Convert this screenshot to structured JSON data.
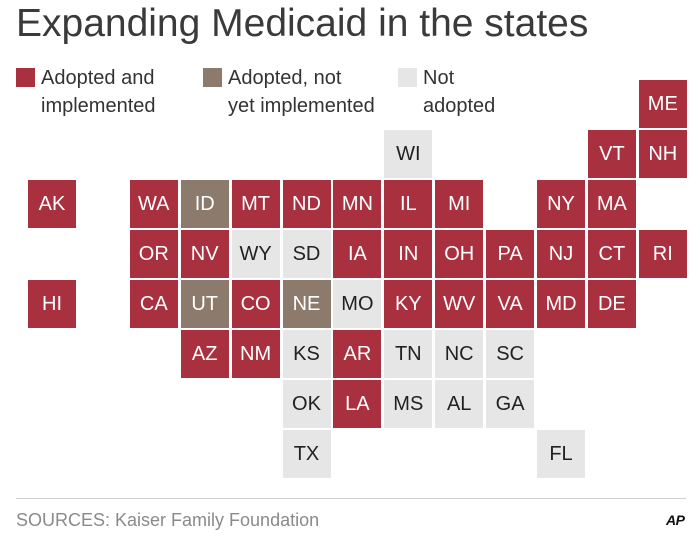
{
  "title": "Expanding Medicaid in the states",
  "colors": {
    "adopted": "#a8303f",
    "pending": "#8c7b6c",
    "not": "#e6e6e6"
  },
  "legend": [
    {
      "status": "adopted",
      "label_lines": [
        "Adopted and",
        "implemented"
      ]
    },
    {
      "status": "pending",
      "label_lines": [
        "Adopted, not",
        "yet implemented"
      ]
    },
    {
      "status": "not",
      "label_lines": [
        "Not",
        "adopted"
      ]
    }
  ],
  "states": [
    {
      "abbr": "ME",
      "col": 12,
      "row": 0,
      "status": "adopted"
    },
    {
      "abbr": "WI",
      "col": 7,
      "row": 1,
      "status": "not"
    },
    {
      "abbr": "VT",
      "col": 11,
      "row": 1,
      "status": "adopted"
    },
    {
      "abbr": "NH",
      "col": 12,
      "row": 1,
      "status": "adopted"
    },
    {
      "abbr": "AK",
      "col": 0,
      "row": 2,
      "status": "adopted"
    },
    {
      "abbr": "WA",
      "col": 2,
      "row": 2,
      "status": "adopted"
    },
    {
      "abbr": "ID",
      "col": 3,
      "row": 2,
      "status": "pending"
    },
    {
      "abbr": "MT",
      "col": 4,
      "row": 2,
      "status": "adopted"
    },
    {
      "abbr": "ND",
      "col": 5,
      "row": 2,
      "status": "adopted"
    },
    {
      "abbr": "MN",
      "col": 6,
      "row": 2,
      "status": "adopted"
    },
    {
      "abbr": "IL",
      "col": 7,
      "row": 2,
      "status": "adopted"
    },
    {
      "abbr": "MI",
      "col": 8,
      "row": 2,
      "status": "adopted"
    },
    {
      "abbr": "NY",
      "col": 10,
      "row": 2,
      "status": "adopted"
    },
    {
      "abbr": "MA",
      "col": 11,
      "row": 2,
      "status": "adopted"
    },
    {
      "abbr": "OR",
      "col": 2,
      "row": 3,
      "status": "adopted"
    },
    {
      "abbr": "NV",
      "col": 3,
      "row": 3,
      "status": "adopted"
    },
    {
      "abbr": "WY",
      "col": 4,
      "row": 3,
      "status": "not"
    },
    {
      "abbr": "SD",
      "col": 5,
      "row": 3,
      "status": "not"
    },
    {
      "abbr": "IA",
      "col": 6,
      "row": 3,
      "status": "adopted"
    },
    {
      "abbr": "IN",
      "col": 7,
      "row": 3,
      "status": "adopted"
    },
    {
      "abbr": "OH",
      "col": 8,
      "row": 3,
      "status": "adopted"
    },
    {
      "abbr": "PA",
      "col": 9,
      "row": 3,
      "status": "adopted"
    },
    {
      "abbr": "NJ",
      "col": 10,
      "row": 3,
      "status": "adopted"
    },
    {
      "abbr": "CT",
      "col": 11,
      "row": 3,
      "status": "adopted"
    },
    {
      "abbr": "RI",
      "col": 12,
      "row": 3,
      "status": "adopted"
    },
    {
      "abbr": "HI",
      "col": 0,
      "row": 4,
      "status": "adopted"
    },
    {
      "abbr": "CA",
      "col": 2,
      "row": 4,
      "status": "adopted"
    },
    {
      "abbr": "UT",
      "col": 3,
      "row": 4,
      "status": "pending"
    },
    {
      "abbr": "CO",
      "col": 4,
      "row": 4,
      "status": "adopted"
    },
    {
      "abbr": "NE",
      "col": 5,
      "row": 4,
      "status": "pending"
    },
    {
      "abbr": "MO",
      "col": 6,
      "row": 4,
      "status": "not"
    },
    {
      "abbr": "KY",
      "col": 7,
      "row": 4,
      "status": "adopted"
    },
    {
      "abbr": "WV",
      "col": 8,
      "row": 4,
      "status": "adopted"
    },
    {
      "abbr": "VA",
      "col": 9,
      "row": 4,
      "status": "adopted"
    },
    {
      "abbr": "MD",
      "col": 10,
      "row": 4,
      "status": "adopted"
    },
    {
      "abbr": "DE",
      "col": 11,
      "row": 4,
      "status": "adopted"
    },
    {
      "abbr": "AZ",
      "col": 3,
      "row": 5,
      "status": "adopted"
    },
    {
      "abbr": "NM",
      "col": 4,
      "row": 5,
      "status": "adopted"
    },
    {
      "abbr": "KS",
      "col": 5,
      "row": 5,
      "status": "not"
    },
    {
      "abbr": "AR",
      "col": 6,
      "row": 5,
      "status": "adopted"
    },
    {
      "abbr": "TN",
      "col": 7,
      "row": 5,
      "status": "not"
    },
    {
      "abbr": "NC",
      "col": 8,
      "row": 5,
      "status": "not"
    },
    {
      "abbr": "SC",
      "col": 9,
      "row": 5,
      "status": "not"
    },
    {
      "abbr": "OK",
      "col": 5,
      "row": 6,
      "status": "not"
    },
    {
      "abbr": "LA",
      "col": 6,
      "row": 6,
      "status": "adopted"
    },
    {
      "abbr": "MS",
      "col": 7,
      "row": 6,
      "status": "not"
    },
    {
      "abbr": "AL",
      "col": 8,
      "row": 6,
      "status": "not"
    },
    {
      "abbr": "GA",
      "col": 9,
      "row": 6,
      "status": "not"
    },
    {
      "abbr": "TX",
      "col": 5,
      "row": 7,
      "status": "not"
    },
    {
      "abbr": "FL",
      "col": 10,
      "row": 7,
      "status": "not"
    }
  ],
  "source": "SOURCES: Kaiser Family Foundation",
  "logo": "AP"
}
